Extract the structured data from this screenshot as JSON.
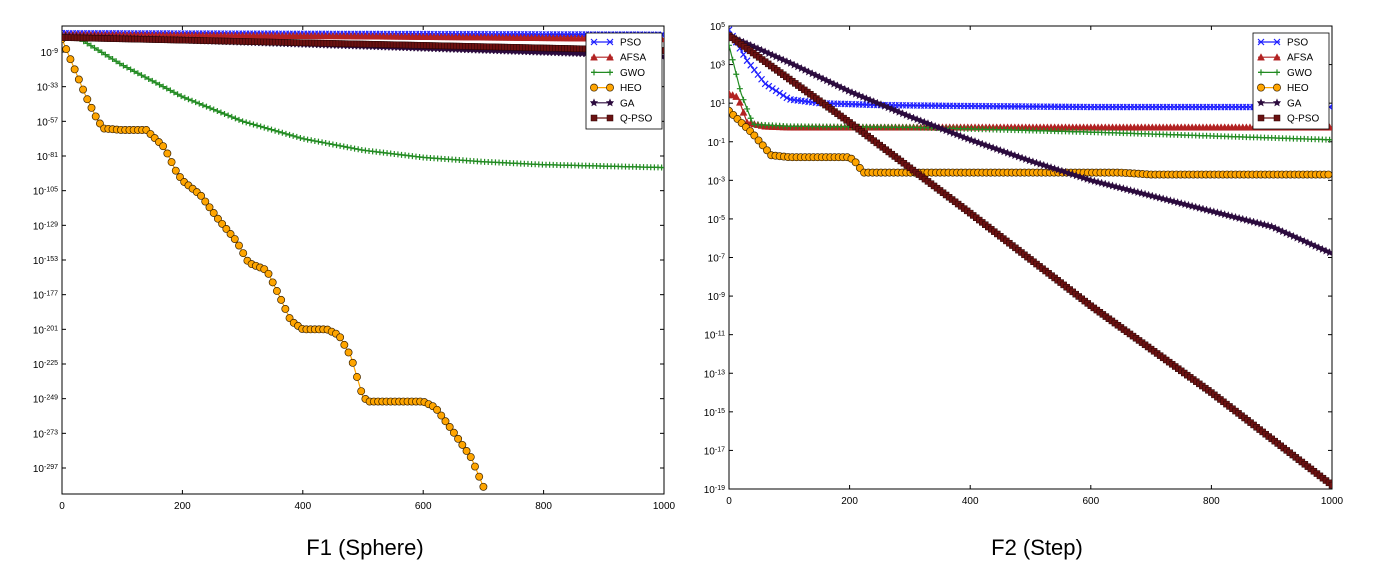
{
  "chart_data": [
    {
      "type": "line",
      "title": "F1 (Sphere)",
      "xlabel": "",
      "ylabel": "",
      "yscale": "log",
      "xlim": [
        0,
        1000
      ],
      "ylim_exp": [
        -315,
        9
      ],
      "xticks": [
        0,
        200,
        400,
        600,
        800,
        1000
      ],
      "yticks_exp": [
        -9,
        -33,
        -57,
        -81,
        -105,
        -129,
        -153,
        -177,
        -201,
        -225,
        -249,
        -273,
        -297
      ],
      "legend": {
        "position": "top-right",
        "entries": [
          "PSO",
          "AFSA",
          "GWO",
          "HEO",
          "GA",
          "Q-PSO"
        ]
      },
      "series": [
        {
          "name": "PSO",
          "color": "#1f1fff",
          "marker": "x",
          "x": [
            0,
            1000
          ],
          "log10y": [
            4,
            3
          ]
        },
        {
          "name": "AFSA",
          "color": "#b22222",
          "marker": "triangle",
          "x": [
            0,
            500,
            1000
          ],
          "log10y": [
            3,
            2,
            0
          ]
        },
        {
          "name": "GWO",
          "color": "#228b22",
          "marker": "plus",
          "x": [
            0,
            30,
            100,
            200,
            300,
            400,
            500,
            600,
            700,
            800,
            900,
            1000
          ],
          "log10y": [
            3,
            0,
            -18,
            -40,
            -57,
            -69,
            -77,
            -82,
            -85,
            -87,
            -88,
            -89
          ]
        },
        {
          "name": "HEO",
          "color": "#ffa500",
          "marker": "circle",
          "x": [
            0,
            20,
            40,
            60,
            70,
            100,
            110,
            140,
            170,
            190,
            200,
            230,
            260,
            290,
            310,
            340,
            360,
            380,
            400,
            420,
            440,
            460,
            480,
            500,
            510,
            530,
            600,
            620,
            650,
            680,
            700
          ],
          "log10y": [
            0,
            -20,
            -40,
            -57,
            -62,
            -63,
            -63,
            -63,
            -75,
            -92,
            -98,
            -108,
            -125,
            -140,
            -155,
            -160,
            -177,
            -195,
            -201,
            -201,
            -201,
            -205,
            -220,
            -248,
            -251,
            -251,
            -251,
            -255,
            -272,
            -290,
            -310
          ]
        },
        {
          "name": "GA",
          "color": "#2b0a3d",
          "marker": "star",
          "x": [
            0,
            1000
          ],
          "log10y": [
            2,
            -12
          ]
        },
        {
          "name": "Q-PSO",
          "color": "#6b1111",
          "marker": "square",
          "x": [
            0,
            1000
          ],
          "log10y": [
            1,
            -8
          ]
        }
      ]
    },
    {
      "type": "line",
      "title": "F2 (Step)",
      "xlabel": "",
      "ylabel": "",
      "yscale": "log",
      "xlim": [
        0,
        1000
      ],
      "ylim_exp": [
        -19,
        5
      ],
      "xticks": [
        0,
        200,
        400,
        600,
        800,
        1000
      ],
      "yticks_exp": [
        5,
        3,
        1,
        -1,
        -3,
        -5,
        -7,
        -9,
        -11,
        -13,
        -15,
        -17,
        -19
      ],
      "legend": {
        "position": "top-right",
        "entries": [
          "PSO",
          "AFSA",
          "GWO",
          "HEO",
          "GA",
          "Q-PSO"
        ]
      },
      "series": [
        {
          "name": "PSO",
          "color": "#1f1fff",
          "marker": "x",
          "x": [
            0,
            30,
            60,
            100,
            150,
            250,
            400,
            600,
            800,
            1000
          ],
          "log10y": [
            4.8,
            3.2,
            2.0,
            1.2,
            1.0,
            0.9,
            0.85,
            0.8,
            0.8,
            0.8
          ]
        },
        {
          "name": "AFSA",
          "color": "#b22222",
          "marker": "triangle",
          "x": [
            0,
            15,
            30,
            60,
            100,
            1000
          ],
          "log10y": [
            1.5,
            1.3,
            0,
            -0.2,
            -0.25,
            -0.25
          ]
        },
        {
          "name": "GWO",
          "color": "#228b22",
          "marker": "plus",
          "x": [
            0,
            20,
            40,
            100,
            300,
            600,
            1000
          ],
          "log10y": [
            4,
            1.5,
            -0.1,
            -0.2,
            -0.25,
            -0.5,
            -0.9
          ]
        },
        {
          "name": "HEO",
          "color": "#ffa500",
          "marker": "circle",
          "x": [
            0,
            40,
            70,
            100,
            200,
            215,
            220,
            250,
            300,
            360,
            400,
            500,
            650,
            700,
            800,
            1000
          ],
          "log10y": [
            0.6,
            -0.6,
            -1.7,
            -1.8,
            -1.8,
            -2.2,
            -2.6,
            -2.6,
            -2.6,
            -2.6,
            -2.6,
            -2.6,
            -2.6,
            -2.7,
            -2.7,
            -2.7
          ]
        },
        {
          "name": "GA",
          "color": "#2b0a3d",
          "marker": "star",
          "x": [
            0,
            100,
            200,
            300,
            400,
            500,
            600,
            700,
            800,
            900,
            1000
          ],
          "log10y": [
            4.5,
            3.1,
            1.6,
            0.3,
            -0.9,
            -2.0,
            -3.0,
            -3.8,
            -4.6,
            -5.4,
            -6.8
          ]
        },
        {
          "name": "Q-PSO",
          "color": "#6b1111",
          "marker": "square",
          "x": [
            0,
            200,
            400,
            600,
            800,
            1000
          ],
          "log10y": [
            4.5,
            0,
            -4.7,
            -9.5,
            -14,
            -18.8
          ]
        }
      ]
    }
  ]
}
